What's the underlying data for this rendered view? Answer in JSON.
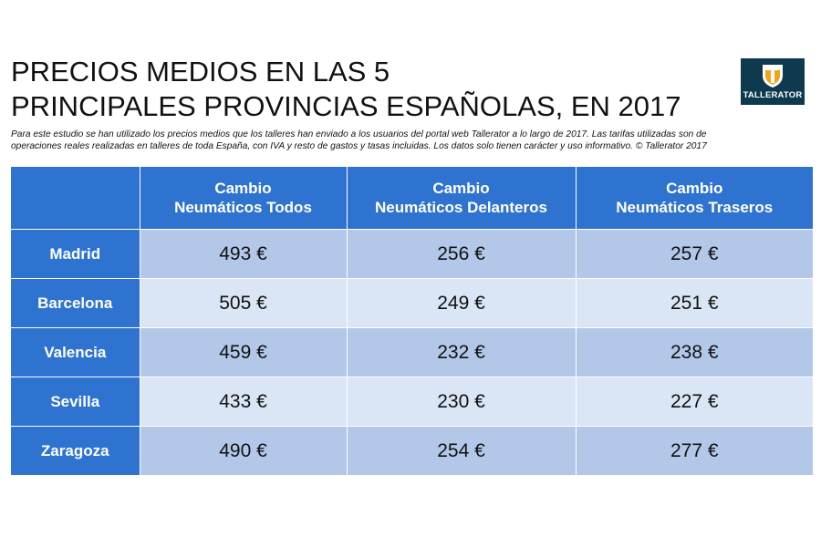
{
  "title": {
    "line1": "PRECIOS MEDIOS EN LAS 5",
    "line2": "PRINCIPALES PROVINCIAS ESPAÑOLAS, EN 2017"
  },
  "subtitle": {
    "line1": "Para este estudio se han utilizado los precios medios que los talleres han enviado a los usuarios del portal web Tallerator a lo largo de 2017. Las tarifas utilizadas son de",
    "line2": "operaciones reales realizadas en talleres de toda España, con IVA y resto de gastos y tasas incluidas. Los datos solo tienen carácter y uso informativo. © Tallerator 2017"
  },
  "logo": {
    "text": "TALLERATOR",
    "bg_color": "#0d3a4e",
    "icon": "tallerator-shield-icon"
  },
  "colors": {
    "header_blue": "#2f73d0",
    "row_dark": "#b3c8e9",
    "row_light": "#dae5f5"
  },
  "chart_data": {
    "type": "table",
    "columns": [
      {
        "line1": "Cambio",
        "line2": "Neumáticos Todos"
      },
      {
        "line1": "Cambio",
        "line2": "Neumáticos Delanteros"
      },
      {
        "line1": "Cambio",
        "line2": "Neumáticos Traseros"
      }
    ],
    "rows": [
      {
        "label": "Madrid",
        "values": [
          "493 €",
          "256 €",
          "257 €"
        ]
      },
      {
        "label": "Barcelona",
        "values": [
          "505 €",
          "249 €",
          "251 €"
        ]
      },
      {
        "label": "Valencia",
        "values": [
          "459 €",
          "232 €",
          "238 €"
        ]
      },
      {
        "label": "Sevilla",
        "values": [
          "433 €",
          "230 €",
          "227 €"
        ]
      },
      {
        "label": "Zaragoza",
        "values": [
          "490 €",
          "254 €",
          "277 €"
        ]
      }
    ]
  }
}
